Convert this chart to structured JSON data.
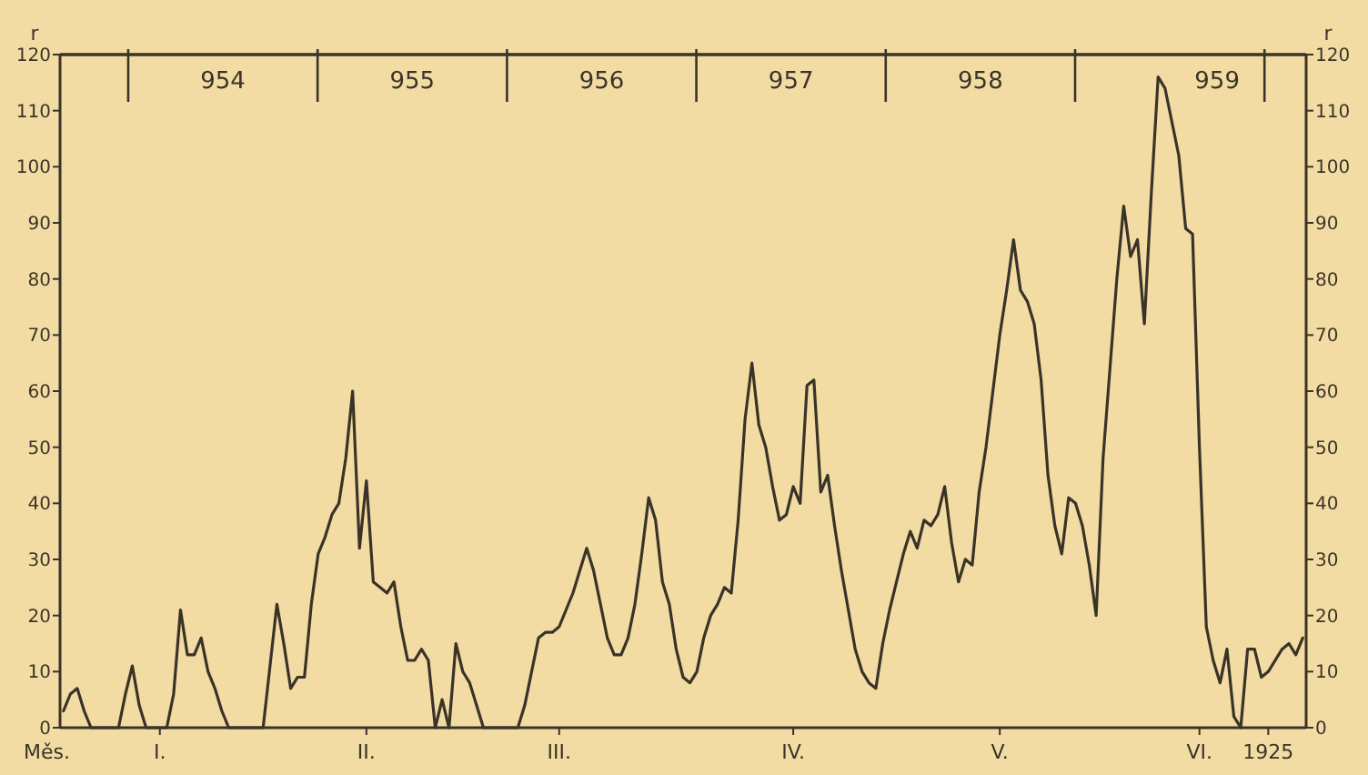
{
  "chart_data": {
    "type": "line",
    "xlabel": "Měs.",
    "ylabel": "r",
    "y2label": "r",
    "categories": [
      null,
      null,
      null,
      null,
      null,
      null,
      null,
      null,
      null,
      null,
      null,
      null,
      null,
      null,
      "I.",
      null,
      null,
      null,
      null,
      null,
      null,
      null,
      null,
      null,
      null,
      null,
      null,
      null,
      null,
      null,
      null,
      null,
      null,
      null,
      null,
      null,
      null,
      null,
      null,
      null,
      null,
      null,
      null,
      null,
      "II.",
      null,
      null,
      null,
      null,
      null,
      null,
      null,
      null,
      null,
      null,
      null,
      null,
      null,
      null,
      null,
      null,
      null,
      null,
      null,
      null,
      null,
      null,
      null,
      null,
      null,
      null,
      null,
      "III.",
      null,
      null,
      null,
      null,
      null,
      null,
      null,
      null,
      null,
      null,
      null,
      null,
      null,
      null,
      null,
      null,
      null,
      null,
      null,
      null,
      null,
      null,
      null,
      null,
      null,
      null,
      null,
      null,
      null,
      null,
      null,
      null,
      null,
      "IV.",
      null,
      null,
      null,
      null,
      null,
      null,
      null,
      null,
      null,
      null,
      null,
      null,
      null,
      null,
      null,
      null,
      null,
      null,
      null,
      null,
      null,
      null,
      null,
      null,
      null,
      null,
      null,
      null,
      null,
      "V.",
      null,
      null,
      null,
      null,
      null,
      null,
      null,
      null,
      null,
      null,
      null,
      null,
      null,
      null,
      null,
      null,
      null,
      null,
      null,
      null,
      null,
      null,
      null,
      null,
      null,
      null,
      null,
      null,
      "VI.",
      null,
      null,
      null,
      null,
      null,
      null,
      null,
      null,
      null,
      "1925",
      null,
      null,
      null,
      null,
      null
    ],
    "series": [
      {
        "color": "#3a3328",
        "values": [
          3,
          6,
          7,
          3,
          0,
          0,
          0,
          0,
          0,
          6,
          11,
          4,
          0,
          0,
          0,
          0,
          6,
          21,
          13,
          13,
          16,
          10,
          7,
          3,
          0,
          0,
          0,
          0,
          0,
          0,
          11,
          22,
          15,
          7,
          9,
          9,
          22,
          31,
          34,
          38,
          40,
          48,
          60,
          32,
          44,
          26,
          25,
          24,
          26,
          18,
          12,
          12,
          14,
          12,
          0,
          5,
          0,
          15,
          10,
          8,
          4,
          0,
          0,
          0,
          0,
          0,
          0,
          4,
          10,
          16,
          17,
          17,
          18,
          21,
          24,
          28,
          32,
          28,
          22,
          16,
          13,
          13,
          16,
          22,
          31,
          41,
          37,
          26,
          22,
          14,
          9,
          8,
          10,
          16,
          20,
          22,
          25,
          24,
          37,
          55,
          65,
          54,
          50,
          43,
          37,
          38,
          43,
          40,
          61,
          62,
          42,
          45,
          36,
          28,
          21,
          14,
          10,
          8,
          7,
          15,
          21,
          26,
          31,
          35,
          32,
          37,
          36,
          38,
          43,
          33,
          26,
          30,
          29,
          42,
          50,
          60,
          70,
          78,
          87,
          78,
          76,
          72,
          62,
          45,
          36,
          31,
          41,
          40,
          36,
          29,
          20,
          48,
          64,
          80,
          93,
          84,
          87,
          72,
          95,
          116,
          114,
          108,
          102,
          89,
          88,
          50,
          18,
          12,
          8,
          14,
          2,
          0,
          14,
          14,
          9,
          10,
          12,
          14,
          15,
          13,
          16
        ]
      }
    ],
    "x2lim": [
      953.14,
      959.72
    ],
    "x2ticks": [
      {
        "value": 953.5,
        "label": null
      },
      954,
      {
        "value": 954.5,
        "label": null
      },
      955,
      {
        "value": 955.5,
        "label": null
      },
      956,
      {
        "value": 956.5,
        "label": null
      },
      957,
      {
        "value": 957.5,
        "label": null
      },
      958,
      {
        "value": 958.5,
        "label": null
      },
      {
        "value": 959.25,
        "label": "959"
      },
      {
        "value": 959.5,
        "label": null
      }
    ],
    "ylim": [
      0,
      120
    ],
    "yticks": [
      0,
      10,
      20,
      30,
      40,
      50,
      60,
      70,
      80,
      90,
      100,
      110,
      120
    ],
    "y2lim": [
      0,
      120
    ],
    "y2ticks": [
      0,
      10,
      20,
      30,
      40,
      50,
      60,
      70,
      80,
      90,
      100,
      110,
      120
    ]
  }
}
